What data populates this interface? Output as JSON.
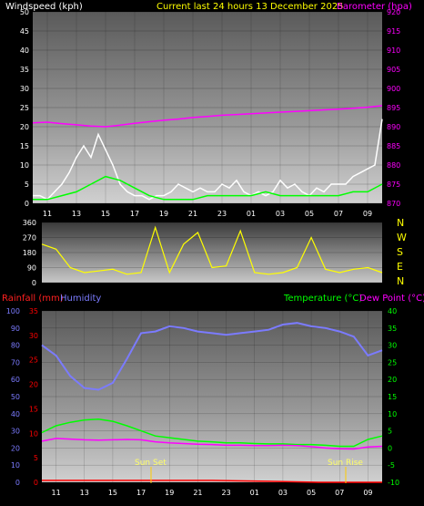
{
  "header": {
    "wind_title": "Windspeed (kph)",
    "current_title": "Current last 24 hours 13 December 2025",
    "baro_title": "Barometer (hpa)"
  },
  "bottom_header": {
    "rain_title": "Rainfall (mm)",
    "hum_title": "Humidity",
    "temp_title": "Temperature (°C)",
    "dew_title": "Dew Point (°C)"
  },
  "annotations": {
    "sunset": "Sun Set",
    "sunrise": "Sun Rise"
  },
  "colors": {
    "wind_gust": "#ffffff",
    "wind_avg": "#00ff00",
    "barometer": "#ff00ff",
    "direction": "#ffff00",
    "humidity": "#7b7bff",
    "temperature": "#00ff00",
    "dewpoint": "#ff00ff",
    "rain": "#ff0000",
    "sun": "#ffcc00"
  },
  "chart_data": [
    {
      "type": "line",
      "title": "Windspeed (kph) / Barometer (hpa)",
      "x_ticks": [
        "11",
        "13",
        "15",
        "17",
        "19",
        "21",
        "23",
        "01",
        "03",
        "05",
        "07",
        "09"
      ],
      "x_range": [
        0,
        24
      ],
      "y_left_ticks": [
        "0",
        "5",
        "10",
        "15",
        "20",
        "25",
        "30",
        "35",
        "40",
        "45",
        "50"
      ],
      "ylim_left": [
        0,
        50
      ],
      "y_right_ticks": [
        "870",
        "875",
        "880",
        "885",
        "890",
        "895",
        "900",
        "905",
        "910",
        "915",
        "920"
      ],
      "ylim_right": [
        870,
        920
      ],
      "series": [
        {
          "name": "Windspeed",
          "axis": "left",
          "x": [
            0,
            0.5,
            1,
            1.5,
            2,
            2.5,
            3,
            3.5,
            4,
            4.5,
            5,
            5.5,
            6,
            6.5,
            7,
            7.5,
            8,
            8.5,
            9,
            9.5,
            10,
            10.5,
            11,
            11.5,
            12,
            12.5,
            13,
            13.5,
            14,
            14.5,
            15,
            15.5,
            16,
            16.5,
            17,
            17.5,
            18,
            18.5,
            19,
            19.5,
            20,
            20.5,
            21,
            21.5,
            22,
            22.5,
            23,
            23.5,
            24
          ],
          "y": [
            2,
            2,
            1,
            3,
            5,
            8,
            12,
            15,
            12,
            18,
            14,
            10,
            5,
            3,
            2,
            2,
            1,
            2,
            2,
            3,
            5,
            4,
            3,
            4,
            3,
            3,
            5,
            4,
            6,
            3,
            2,
            3,
            2,
            3,
            6,
            4,
            5,
            3,
            2,
            4,
            3,
            5,
            5,
            5,
            7,
            8,
            9,
            10,
            22
          ]
        },
        {
          "name": "Wind average",
          "axis": "left",
          "x": [
            0,
            1,
            2,
            3,
            4,
            5,
            6,
            7,
            8,
            9,
            10,
            11,
            12,
            13,
            14,
            15,
            16,
            17,
            18,
            19,
            20,
            21,
            22,
            23,
            24
          ],
          "y": [
            1,
            1,
            2,
            3,
            5,
            7,
            6,
            4,
            2,
            1,
            1,
            1,
            2,
            2,
            2,
            2,
            3,
            2,
            2,
            2,
            2,
            2,
            3,
            3,
            5
          ]
        },
        {
          "name": "Barometer",
          "axis": "right",
          "x": [
            0,
            1,
            2,
            3,
            4,
            5,
            6,
            7,
            8,
            9,
            10,
            11,
            12,
            13,
            14,
            15,
            16,
            17,
            18,
            19,
            20,
            21,
            22,
            23,
            24
          ],
          "y": [
            891,
            891.2,
            890.8,
            890.5,
            890.2,
            890.0,
            890.4,
            890.9,
            891.3,
            891.7,
            892.0,
            892.4,
            892.7,
            893.0,
            893.2,
            893.4,
            893.6,
            893.8,
            894.0,
            894.2,
            894.4,
            894.6,
            894.8,
            895.1,
            895.5
          ]
        }
      ]
    },
    {
      "type": "scatter",
      "title": "Wind direction",
      "x_range": [
        0,
        24
      ],
      "y_ticks": [
        "0",
        "90",
        "180",
        "270",
        "360"
      ],
      "ylim": [
        0,
        360
      ],
      "compass": [
        "N",
        "W",
        "S",
        "E",
        "N"
      ],
      "series": [
        {
          "name": "Direction",
          "x": [
            0,
            1,
            2,
            3,
            4,
            5,
            6,
            7,
            8,
            9,
            10,
            11,
            12,
            13,
            14,
            15,
            16,
            17,
            18,
            19,
            20,
            21,
            22,
            23,
            24
          ],
          "y": [
            230,
            200,
            90,
            60,
            70,
            80,
            50,
            60,
            330,
            60,
            230,
            300,
            90,
            100,
            310,
            60,
            50,
            60,
            90,
            270,
            80,
            60,
            80,
            90,
            60
          ]
        }
      ]
    },
    {
      "type": "line",
      "title": "Rainfall (mm) / Humidity / Temperature (°C) / Dew Point (°C)",
      "x_ticks": [
        "11",
        "13",
        "15",
        "17",
        "19",
        "21",
        "23",
        "01",
        "03",
        "05",
        "07",
        "09"
      ],
      "x_range": [
        0,
        24
      ],
      "y_humidity_ticks": [
        "0",
        "10",
        "20",
        "30",
        "40",
        "50",
        "60",
        "70",
        "80",
        "90",
        "100"
      ],
      "ylim_humidity": [
        0,
        100
      ],
      "y_rain_ticks": [
        "0",
        "5",
        "10",
        "15",
        "20",
        "25",
        "30",
        "35"
      ],
      "ylim_rain": [
        0,
        35
      ],
      "y_temp_ticks": [
        "-10",
        "-5",
        "0",
        "5",
        "10",
        "15",
        "20",
        "25",
        "30",
        "35",
        "40"
      ],
      "ylim_temp": [
        -10,
        40
      ],
      "series": [
        {
          "name": "Humidity",
          "axis": "humidity",
          "x": [
            0,
            1,
            2,
            3,
            4,
            5,
            6,
            7,
            8,
            9,
            10,
            11,
            12,
            13,
            14,
            15,
            16,
            17,
            18,
            19,
            20,
            21,
            22,
            23,
            24
          ],
          "y": [
            80,
            74,
            62,
            55,
            54,
            58,
            72,
            87,
            88,
            91,
            90,
            88,
            87,
            86,
            87,
            88,
            89,
            92,
            93,
            91,
            90,
            88,
            85,
            74,
            77
          ]
        },
        {
          "name": "Temperature",
          "axis": "temp",
          "x": [
            0,
            1,
            2,
            3,
            4,
            5,
            6,
            7,
            8,
            9,
            10,
            11,
            12,
            13,
            14,
            15,
            16,
            17,
            18,
            19,
            20,
            21,
            22,
            23,
            24
          ],
          "y": [
            4.5,
            6.5,
            7.5,
            8.2,
            8.4,
            7.8,
            6.5,
            5.0,
            3.5,
            3.0,
            2.5,
            2.0,
            1.8,
            1.5,
            1.5,
            1.3,
            1.2,
            1.2,
            1.0,
            1.0,
            0.8,
            0.5,
            0.5,
            2.5,
            3.5
          ]
        },
        {
          "name": "Dew Point",
          "axis": "temp",
          "x": [
            0,
            1,
            2,
            3,
            4,
            5,
            6,
            7,
            8,
            9,
            10,
            11,
            12,
            13,
            14,
            15,
            16,
            17,
            18,
            19,
            20,
            21,
            22,
            23,
            24
          ],
          "y": [
            2.0,
            2.8,
            2.6,
            2.4,
            2.3,
            2.4,
            2.5,
            2.4,
            1.8,
            1.5,
            1.3,
            1.1,
            1.0,
            0.8,
            0.8,
            0.7,
            0.7,
            0.8,
            0.7,
            0.4,
            0.0,
            -0.2,
            -0.3,
            0.3,
            0.5
          ]
        },
        {
          "name": "Rainfall",
          "axis": "rain",
          "x": [
            0,
            4,
            8,
            12,
            16,
            19.5,
            24
          ],
          "y": [
            0.4,
            0.4,
            0.4,
            0.4,
            0.2,
            0.0,
            0.0
          ]
        }
      ]
    }
  ]
}
